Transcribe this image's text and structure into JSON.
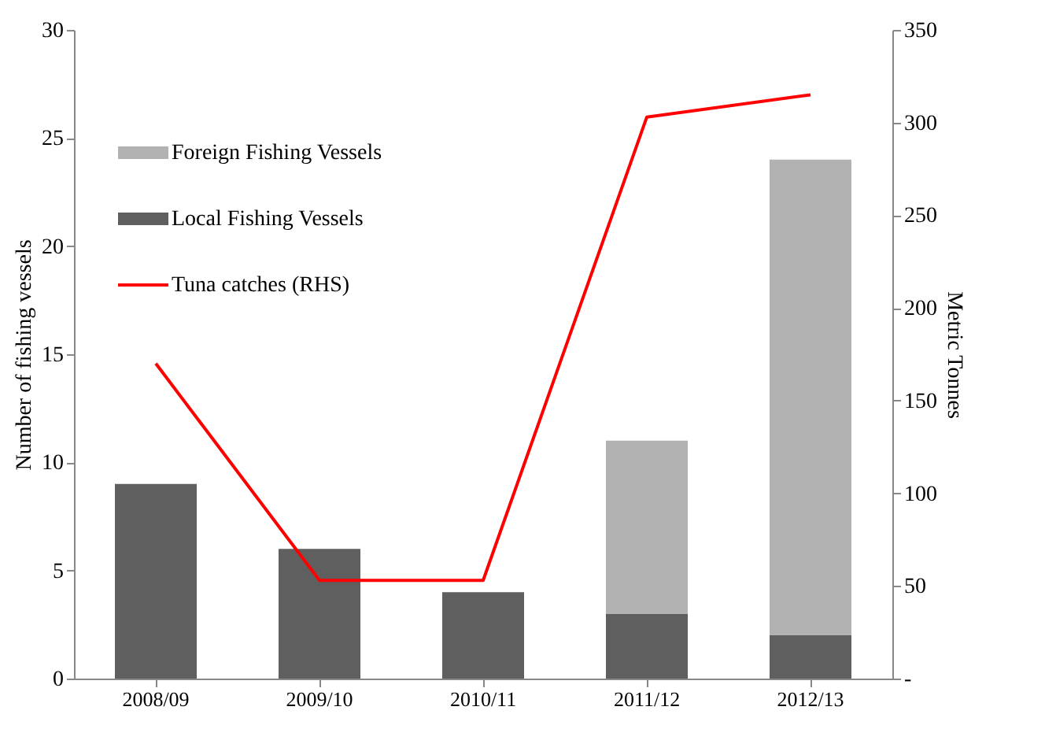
{
  "chart_data": {
    "type": "bar",
    "stacked": true,
    "ylabel": "Number of fishing vessels",
    "y2label": "Metric Tonnes",
    "categories": [
      "2008/09",
      "2009/10",
      "2010/11",
      "2011/12",
      "2012/13"
    ],
    "series": [
      {
        "name": "Local Fishing Vessels",
        "color": "#5f5f5f",
        "values": [
          9,
          6,
          4,
          3,
          2
        ]
      },
      {
        "name": "Foreign Fishing Vessels",
        "color": "#b2b2b2",
        "values": [
          0,
          0,
          0,
          8,
          22
        ]
      },
      {
        "name": "Tuna catches (RHS)",
        "type": "line",
        "axis": "y2",
        "color": "#ff0000",
        "values": [
          170,
          53,
          53,
          303,
          315
        ]
      }
    ],
    "ylim": [
      0,
      30
    ],
    "yticks": [
      0,
      5,
      10,
      15,
      20,
      25,
      30
    ],
    "y2lim": [
      0,
      350
    ],
    "y2ticks": [
      {
        "value": 0,
        "label": "-"
      },
      50,
      100,
      150,
      200,
      250,
      300,
      350
    ],
    "grid": false,
    "legend": "top left",
    "marker": "none",
    "line_style": "solid"
  }
}
